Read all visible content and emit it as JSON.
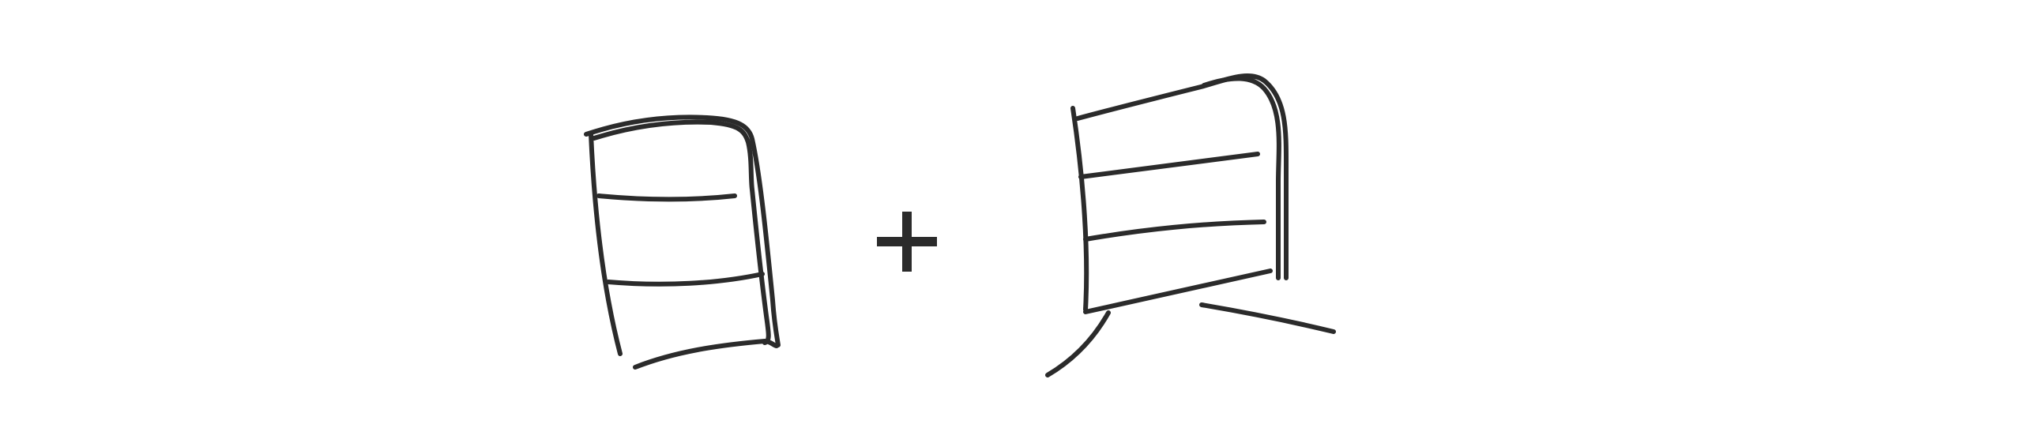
{
  "diagram": {
    "title": "",
    "operator": "+",
    "components": [
      {
        "name": "日",
        "role": "left-character"
      },
      {
        "name": "貝",
        "role": "right-character"
      }
    ],
    "colors": {
      "ink": "#2b2b2b",
      "background": "#ffffff"
    }
  }
}
